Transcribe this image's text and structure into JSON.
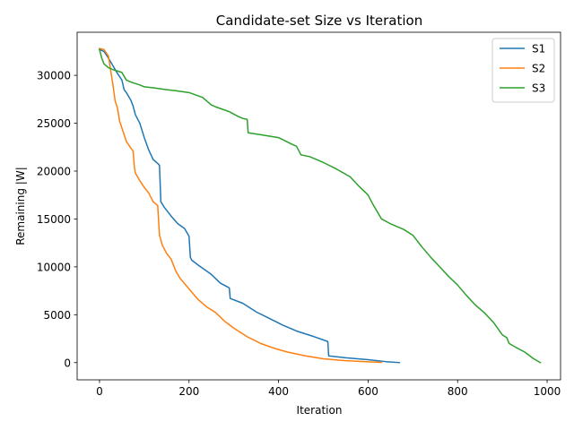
{
  "chart_data": {
    "type": "line",
    "title": "Candidate-set Size vs Iteration",
    "xlabel": "Iteration",
    "ylabel": "Remaining |W|",
    "xlim": [
      -50,
      1030
    ],
    "ylim": [
      -1800,
      34500
    ],
    "xticks": [
      0,
      200,
      400,
      600,
      800,
      1000
    ],
    "yticks": [
      0,
      5000,
      10000,
      15000,
      20000,
      25000,
      30000
    ],
    "grid": false,
    "legend_position": "upper right",
    "series": [
      {
        "name": "S1",
        "color": "#1f77b4",
        "x": [
          0,
          10,
          20,
          30,
          40,
          50,
          55,
          60,
          70,
          75,
          80,
          90,
          100,
          110,
          120,
          130,
          134,
          137,
          145,
          160,
          175,
          190,
          200,
          203,
          206,
          220,
          250,
          270,
          290,
          292,
          320,
          350,
          380,
          410,
          440,
          480,
          510,
          512,
          550,
          600,
          640,
          670
        ],
        "y": [
          32700,
          32500,
          31800,
          31000,
          30200,
          29500,
          28500,
          28200,
          27400,
          26800,
          25900,
          25000,
          23500,
          22200,
          21200,
          20800,
          20600,
          16800,
          16200,
          15300,
          14500,
          14000,
          13200,
          11000,
          10700,
          10200,
          9200,
          8300,
          7800,
          6700,
          6200,
          5300,
          4600,
          3900,
          3300,
          2700,
          2200,
          700,
          500,
          300,
          100,
          0
        ]
      },
      {
        "name": "S2",
        "color": "#ff7f0e",
        "x": [
          0,
          10,
          20,
          25,
          30,
          35,
          40,
          45,
          50,
          60,
          70,
          75,
          78,
          80,
          90,
          100,
          110,
          120,
          130,
          134,
          136,
          140,
          150,
          160,
          170,
          180,
          200,
          220,
          240,
          260,
          280,
          300,
          330,
          360,
          390,
          420,
          460,
          500,
          550,
          600,
          630
        ],
        "y": [
          32800,
          32700,
          32000,
          30500,
          29000,
          27300,
          26600,
          25200,
          24500,
          23100,
          22400,
          22100,
          20400,
          19800,
          19000,
          18300,
          17700,
          16800,
          16400,
          13300,
          13000,
          12300,
          11400,
          10800,
          9600,
          8800,
          7700,
          6600,
          5800,
          5200,
          4300,
          3600,
          2700,
          2000,
          1500,
          1100,
          700,
          400,
          200,
          80,
          30
        ]
      },
      {
        "name": "S3",
        "color": "#2ca02c",
        "x": [
          0,
          5,
          10,
          20,
          30,
          50,
          60,
          70,
          90,
          100,
          120,
          150,
          170,
          200,
          230,
          250,
          260,
          290,
          310,
          320,
          330,
          332,
          360,
          400,
          430,
          440,
          450,
          470,
          500,
          530,
          560,
          580,
          600,
          610,
          620,
          630,
          650,
          680,
          700,
          720,
          740,
          760,
          780,
          800,
          820,
          840,
          860,
          880,
          900,
          910,
          915,
          930,
          950,
          970,
          985
        ],
        "y": [
          32700,
          31800,
          31200,
          30800,
          30600,
          30300,
          29500,
          29300,
          29000,
          28800,
          28700,
          28500,
          28400,
          28200,
          27700,
          26900,
          26700,
          26200,
          25700,
          25500,
          25400,
          24000,
          23800,
          23500,
          22800,
          22600,
          21700,
          21500,
          20900,
          20200,
          19400,
          18400,
          17500,
          16600,
          15800,
          15000,
          14500,
          13900,
          13300,
          12100,
          11000,
          10000,
          9000,
          8100,
          7000,
          6000,
          5200,
          4200,
          2900,
          2600,
          2000,
          1600,
          1100,
          400,
          0
        ]
      }
    ]
  }
}
